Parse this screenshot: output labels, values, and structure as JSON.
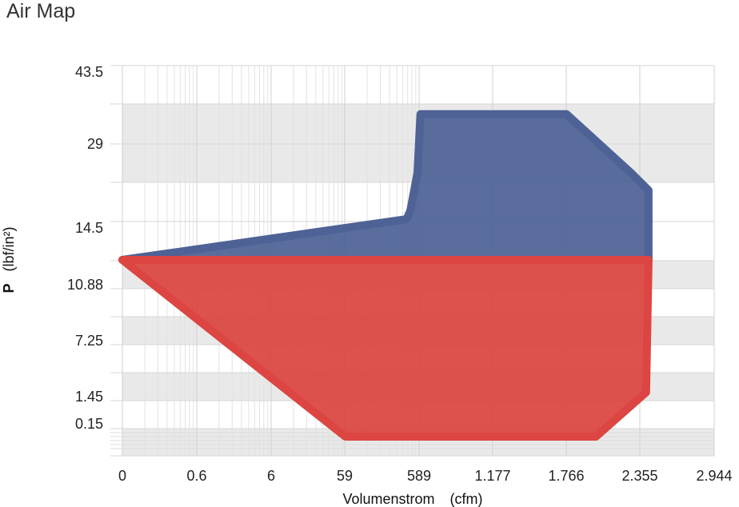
{
  "title": "Air Map",
  "chart_data": {
    "type": "area",
    "title": "Air Map",
    "xlabel": {
      "symbol": "Volumenstrom",
      "unit": "(cfm)"
    },
    "ylabel": {
      "symbol": "P",
      "unit": "(lbf/in²)"
    },
    "x_ticks": [
      "0",
      "0.6",
      "6",
      "59",
      "589",
      "1.177",
      "1.766",
      "2.355",
      "2.944"
    ],
    "x_scale": "log-then-linear",
    "y_ticks": [
      "43.5",
      "29",
      "14.5",
      "10.88",
      "7.25",
      "1.45",
      "0.15"
    ],
    "y_scale": "two-segment (vacuum below, pressure above)",
    "grid": true,
    "series": [
      {
        "region": "pressure",
        "color": "#4e6296",
        "polygon": [
          {
            "x": "0",
            "y": 11.8
          },
          {
            "x": 400,
            "y": 16.0
          },
          {
            "x": 450,
            "y": 17.5
          },
          {
            "x": 560,
            "y": 24.0
          },
          {
            "x": 600,
            "y": 35.0
          },
          {
            "x": 1766,
            "y": 35.0
          },
          {
            "x": 2280,
            "y": 24.0
          },
          {
            "x": 2420,
            "y": 21.0
          },
          {
            "x": 2420,
            "y": 11.8
          }
        ]
      },
      {
        "region": "vacuum",
        "color": "#dc4541",
        "polygon": [
          {
            "x": "0",
            "y": 11.8
          },
          {
            "x": 2420,
            "y": 11.8
          },
          {
            "x": 2400,
            "y": 1.9
          },
          {
            "x": 2000,
            "y": 0.03
          },
          {
            "x": 60,
            "y": 0.03
          }
        ]
      }
    ]
  },
  "colors": {
    "pressure": "#4e6296",
    "vacuum": "#dc4541",
    "band": "#e9e9e9",
    "grid": "#d6d6d6"
  }
}
